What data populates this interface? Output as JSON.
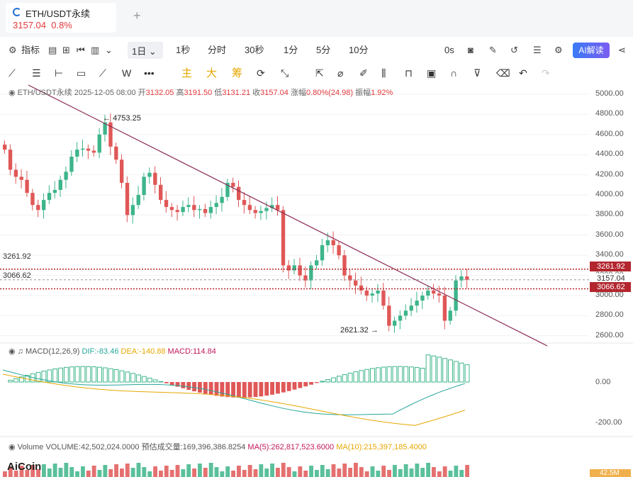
{
  "tab": {
    "title": "ETH/USDT永续",
    "price": "3157.04",
    "change": "0.8%",
    "add_label": "+"
  },
  "toolbar1": {
    "indicator_label": "指标",
    "period_selected": "1日",
    "periods": [
      "1秒",
      "分时",
      "30秒",
      "1分",
      "5分",
      "10分"
    ],
    "countdown": "0s",
    "ai_label": "AI解读"
  },
  "toolbar2": {
    "w_label": "W",
    "cn_labels": [
      "主",
      "大",
      "筹"
    ]
  },
  "info": {
    "pair": "ETH/USDT永续",
    "date": "2025-12-05 08:00",
    "open_label": "开",
    "open": "3132.05",
    "high_label": "高",
    "high": "3191.50",
    "low_label": "低",
    "low": "3131.21",
    "close_label": "收",
    "close": "3157.04",
    "chg_label": "涨幅",
    "chg": "0.80%(24.98)",
    "amp_label": "振幅",
    "amp": "1.92%"
  },
  "macd": {
    "title": "MACD(12,26,9)",
    "dif": "DIF:-83.46",
    "dea": "DEA:-140.88",
    "macd": "MACD:114.84"
  },
  "volume": {
    "title": "Volume",
    "volume": "VOLUME:42,502,024.0000",
    "est": "预估成交量:169,396,386.8254",
    "ma5": "MA(5):262,817,523.6000",
    "ma10": "MA(10):215,397,185.4000",
    "tag": "42.5M"
  },
  "price_axis": [
    "5000.00",
    "4800.00",
    "4600.00",
    "4400.00",
    "4200.00",
    "4000.00",
    "3800.00",
    "3600.00",
    "3400.00",
    "3200.00",
    "3000.00",
    "2800.00",
    "2600.00"
  ],
  "macd_axis": [
    "0.00",
    "-200.00"
  ],
  "levels": {
    "upper": "3261.92",
    "lower": "3066.62",
    "current": "3157.04",
    "upper_tag": "3261.92",
    "lower_tag": "3066.62"
  },
  "annotations": {
    "high": "4753.25",
    "low": "2621.32"
  },
  "logo": "AiCoin",
  "colors": {
    "up": "#3db58a",
    "down": "#e05757",
    "trend": "#8a2a55",
    "level": "#b3262e"
  }
}
